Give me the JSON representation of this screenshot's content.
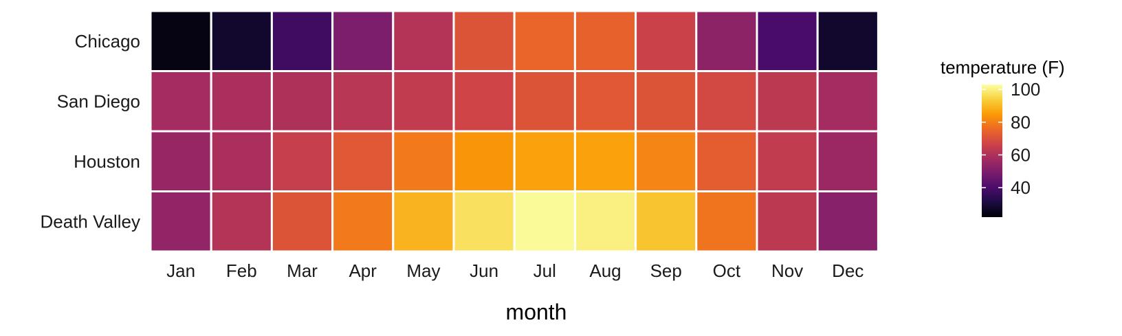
{
  "chart_data": {
    "type": "heatmap",
    "title": "",
    "xlabel": "month",
    "ylabel": "",
    "x_categories": [
      "Jan",
      "Feb",
      "Mar",
      "Apr",
      "May",
      "Jun",
      "Jul",
      "Aug",
      "Sep",
      "Oct",
      "Nov",
      "Dec"
    ],
    "y_categories": [
      "Chicago",
      "San Diego",
      "Houston",
      "Death Valley"
    ],
    "values": [
      [
        24,
        28,
        38,
        50,
        61,
        71,
        75,
        74,
        66,
        53,
        40,
        28
      ],
      [
        58,
        59,
        60,
        62,
        64,
        67,
        71,
        72,
        71,
        68,
        63,
        58
      ],
      [
        55,
        59,
        65,
        72,
        79,
        84,
        86,
        86,
        81,
        73,
        64,
        56
      ],
      [
        54,
        61,
        71,
        79,
        89,
        97,
        102,
        100,
        92,
        78,
        63,
        52
      ]
    ],
    "legend": {
      "title": "temperature (F)",
      "ticks": [
        40,
        60,
        80,
        100
      ],
      "range": [
        22,
        103
      ],
      "position": "right"
    },
    "grid": false,
    "colormap": "inferno",
    "colormap_stops": [
      "#000004",
      "#1b0c41",
      "#4a0c6b",
      "#781c6d",
      "#a52c60",
      "#cf4446",
      "#ed6925",
      "#fb9b06",
      "#f7d13d",
      "#fcffa4"
    ],
    "tile_border_color": "#ffffff"
  }
}
